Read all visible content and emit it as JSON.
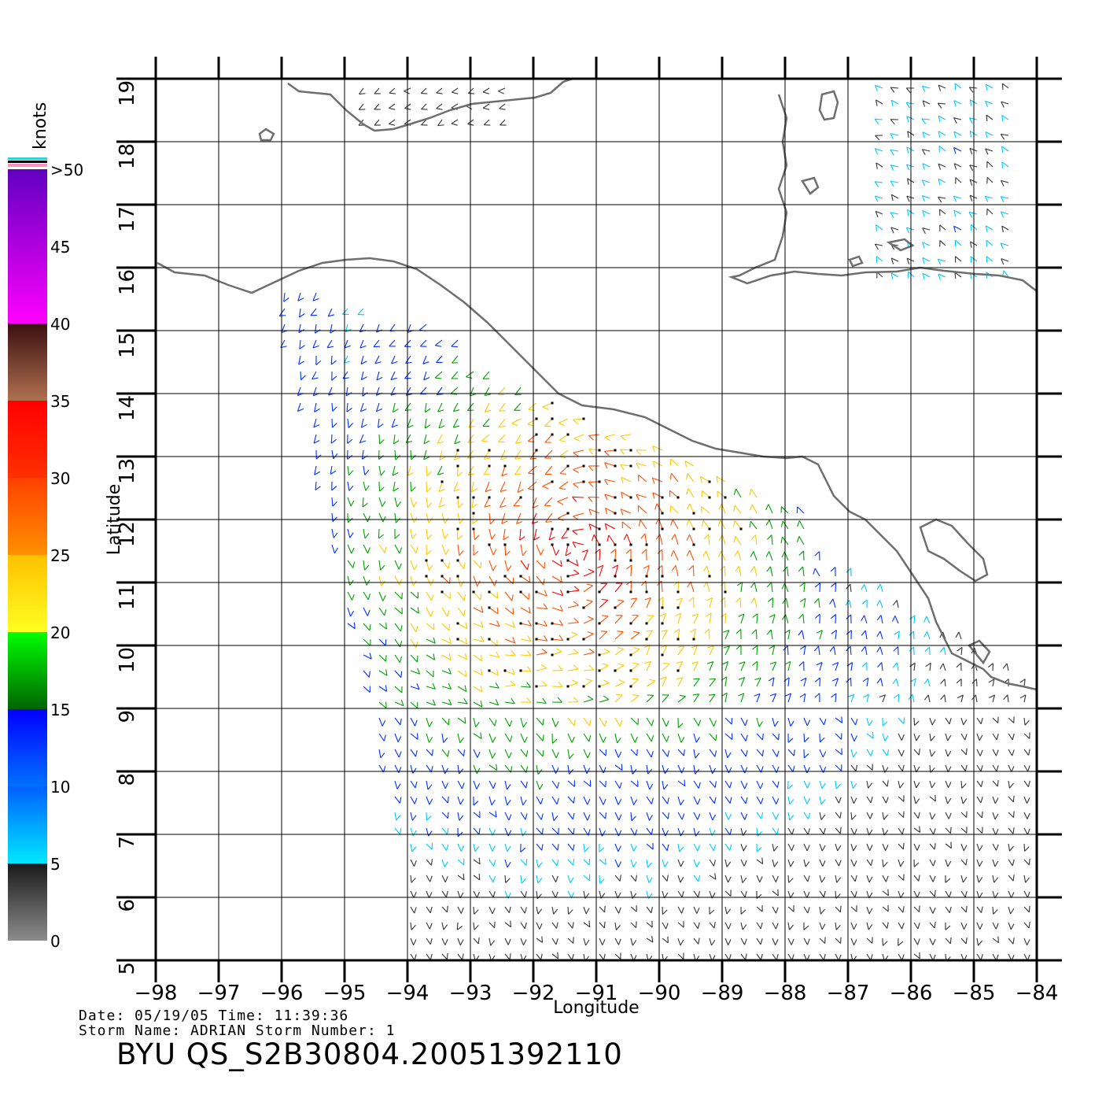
{
  "chart_data": {
    "type": "wind-vector-map",
    "xlabel": "Longitude",
    "ylabel": "Latitude",
    "xlim": [
      -98,
      -84
    ],
    "ylim": [
      5,
      19
    ],
    "x_ticks": [
      "−98",
      "−97",
      "−96",
      "−95",
      "−94",
      "−93",
      "−92",
      "−91",
      "−90",
      "−89",
      "−88",
      "−87",
      "−86",
      "−85",
      "−84"
    ],
    "y_ticks": [
      "5",
      "6",
      "7",
      "8",
      "9",
      "10",
      "11",
      "12",
      "13",
      "14",
      "15",
      "16",
      "17",
      "18",
      "19"
    ],
    "grid": true,
    "colorbar": {
      "title": "knots",
      "labels": [
        "0",
        "5",
        "10",
        "15",
        "20",
        "25",
        "30",
        "35",
        "40",
        "45",
        ">50"
      ],
      "bands": [
        {
          "from": 0,
          "to": 5,
          "colors": [
            "#8c8c8c",
            "#1a1a1a"
          ]
        },
        {
          "from": 5,
          "to": 10,
          "colors": [
            "#00e8ff",
            "#0060ff"
          ]
        },
        {
          "from": 10,
          "to": 15,
          "colors": [
            "#0070ff",
            "#0000ff"
          ]
        },
        {
          "from": 15,
          "to": 20,
          "colors": [
            "#006400",
            "#00ff00"
          ]
        },
        {
          "from": 20,
          "to": 25,
          "colors": [
            "#ffff20",
            "#ffc000"
          ]
        },
        {
          "from": 25,
          "to": 30,
          "colors": [
            "#ff9000",
            "#ff4000"
          ]
        },
        {
          "from": 30,
          "to": 35,
          "colors": [
            "#ff3000",
            "#ff0000"
          ]
        },
        {
          "from": 35,
          "to": 40,
          "colors": [
            "#b07050",
            "#3a1010"
          ]
        },
        {
          "from": 40,
          "to": 50,
          "colors": [
            "#ff00ff",
            "#6000c0"
          ]
        }
      ]
    }
  },
  "footer": {
    "line1": "Date: 05/19/05   Time: 11:39:36",
    "line2": "Storm Name: ADRIAN   Storm Number: 1",
    "product": "BYU QS_S2B30804.20051392110"
  }
}
